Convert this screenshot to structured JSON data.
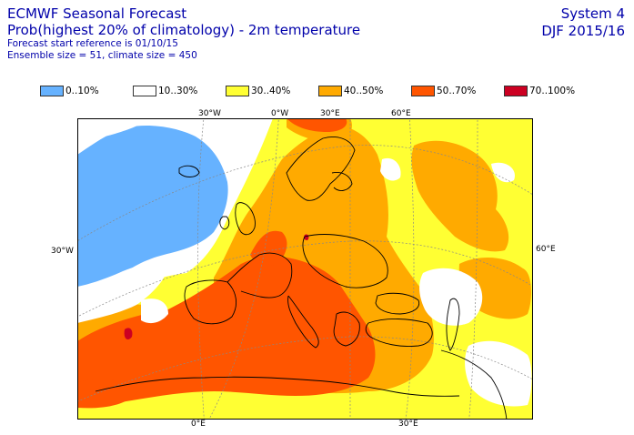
{
  "header": {
    "title_line1": "ECMWF Seasonal Forecast",
    "title_line2": "Prob(highest 20% of climatology) - 2m temperature",
    "forecast_ref": "Forecast start reference is 01/10/15",
    "ensemble": "Ensemble size = 51, climate size = 450",
    "system": "System 4",
    "season": "DJF 2015/16"
  },
  "legend": [
    {
      "label": "0..10%",
      "color": "#66b2ff"
    },
    {
      "label": "10..30%",
      "color": "#ffffff"
    },
    {
      "label": "30..40%",
      "color": "#ffff33"
    },
    {
      "label": "40..50%",
      "color": "#ffaa00"
    },
    {
      "label": "50..70%",
      "color": "#ff5500"
    },
    {
      "label": "70..100%",
      "color": "#cc0022"
    }
  ],
  "map": {
    "top_labels": [
      "30°W",
      "0°W",
      "30°E",
      "60°E"
    ],
    "left_label": "30°W",
    "right_label": "60°E",
    "bottom_labels": [
      "0°E",
      "30°E"
    ]
  }
}
